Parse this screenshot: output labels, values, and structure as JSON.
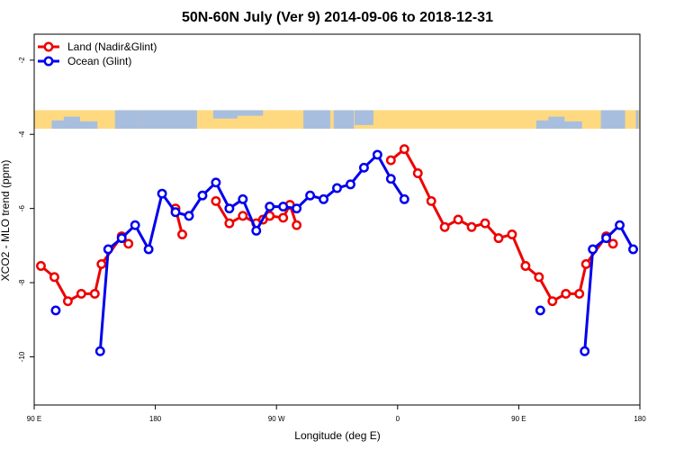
{
  "chart_data": {
    "type": "line",
    "title": "50N-60N July (Ver 9)   2014-09-06 to 2018-12-31",
    "xlabel": "Longitude (deg E)",
    "ylabel": "XCO2 - MLO trend (ppm)",
    "xlim": [
      90,
      540
    ],
    "ylim": [
      -11.3,
      -1.3
    ],
    "xticks": [
      {
        "value": 90,
        "label": "90 E"
      },
      {
        "value": 180,
        "label": "180"
      },
      {
        "value": 270,
        "label": "90 W"
      },
      {
        "value": 360,
        "label": "0"
      },
      {
        "value": 450,
        "label": "90 E"
      },
      {
        "value": 540,
        "label": "180"
      }
    ],
    "yticks": [
      {
        "value": -2,
        "label": "-2"
      },
      {
        "value": -4,
        "label": "-4"
      },
      {
        "value": -6,
        "label": "-6"
      },
      {
        "value": -8,
        "label": "-8"
      },
      {
        "value": -10,
        "label": "-10"
      }
    ],
    "map_band": {
      "y_range": [
        -3.35,
        -3.85
      ],
      "ocean_color": "#a8bede",
      "land_color": "#ffd980"
    },
    "legend": {
      "position": "top-left"
    },
    "series": [
      {
        "name": "Land (Nadir&Glint)",
        "color": "#ee0000",
        "segments": [
          [
            [
              95,
              -7.55
            ],
            [
              105,
              -7.85
            ],
            [
              115,
              -8.5
            ],
            [
              125,
              -8.3
            ],
            [
              135,
              -8.3
            ],
            [
              140,
              -7.5
            ],
            [
              155,
              -6.75
            ],
            [
              160,
              -6.95
            ]
          ],
          [
            [
              195,
              -6.0
            ],
            [
              200,
              -6.7
            ]
          ],
          [
            [
              225,
              -5.8
            ],
            [
              235,
              -6.4
            ],
            [
              245,
              -6.2
            ],
            [
              255,
              -6.4
            ],
            [
              260,
              -6.3
            ],
            [
              265,
              -6.2
            ],
            [
              275,
              -6.25
            ],
            [
              280,
              -5.9
            ],
            [
              285,
              -6.45
            ]
          ],
          [
            [
              355,
              -4.7
            ],
            [
              365,
              -4.4
            ],
            [
              375,
              -5.05
            ],
            [
              385,
              -5.8
            ],
            [
              395,
              -6.5
            ],
            [
              405,
              -6.3
            ],
            [
              415,
              -6.5
            ],
            [
              425,
              -6.4
            ],
            [
              435,
              -6.8
            ],
            [
              445,
              -6.7
            ],
            [
              455,
              -7.55
            ],
            [
              465,
              -7.85
            ],
            [
              475,
              -8.5
            ],
            [
              485,
              -8.3
            ],
            [
              495,
              -8.3
            ],
            [
              500,
              -7.5
            ],
            [
              515,
              -6.75
            ],
            [
              520,
              -6.95
            ]
          ]
        ]
      },
      {
        "name": "Ocean (Glint)",
        "color": "#0000ee",
        "segments": [
          [
            [
              106,
              -8.75
            ]
          ],
          [
            [
              139,
              -9.85
            ],
            [
              145,
              -7.1
            ],
            [
              155,
              -6.8
            ],
            [
              165,
              -6.45
            ],
            [
              175,
              -7.1
            ],
            [
              185,
              -5.6
            ],
            [
              195,
              -6.1
            ],
            [
              205,
              -6.2
            ],
            [
              215,
              -5.65
            ],
            [
              225,
              -5.3
            ],
            [
              235,
              -6.0
            ],
            [
              245,
              -5.75
            ],
            [
              255,
              -6.6
            ],
            [
              265,
              -5.95
            ],
            [
              275,
              -5.95
            ],
            [
              285,
              -6.0
            ],
            [
              295,
              -5.65
            ],
            [
              305,
              -5.75
            ],
            [
              315,
              -5.45
            ],
            [
              325,
              -5.35
            ],
            [
              335,
              -4.9
            ],
            [
              345,
              -4.55
            ],
            [
              355,
              -5.2
            ],
            [
              365,
              -5.75
            ]
          ],
          [
            [
              466,
              -8.75
            ]
          ],
          [
            [
              499,
              -9.85
            ],
            [
              505,
              -7.1
            ],
            [
              515,
              -6.8
            ],
            [
              525,
              -6.45
            ],
            [
              535,
              -7.1
            ]
          ]
        ]
      }
    ]
  }
}
